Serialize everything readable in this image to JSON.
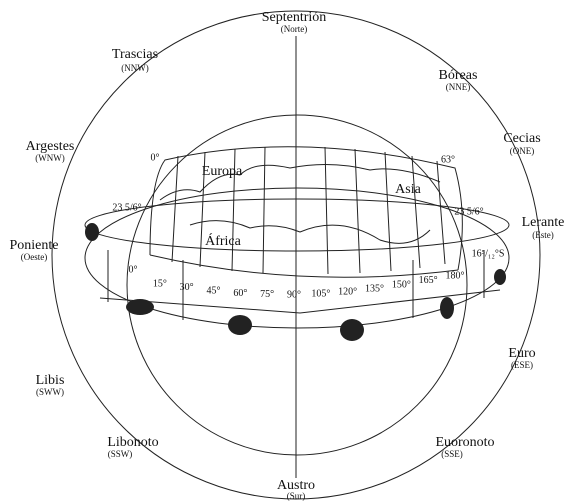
{
  "winds": [
    {
      "name": "Septentrión",
      "direction": "(Norte)"
    },
    {
      "name": "Trascias",
      "direction": "(NNW)"
    },
    {
      "name": "Bóreas",
      "direction": "(NNE)"
    },
    {
      "name": "Argestes",
      "direction": "(WNW)"
    },
    {
      "name": "Cecias",
      "direction": "(ONE)"
    },
    {
      "name": "Poniente",
      "direction": "(Oeste)"
    },
    {
      "name": "Lerante",
      "direction": "(Este)"
    },
    {
      "name": "Euro",
      "direction": "(ESE)"
    },
    {
      "name": "Libis",
      "direction": "(SWW)"
    },
    {
      "name": "Libonoto",
      "direction": "(SSW)"
    },
    {
      "name": "Euoronoto",
      "direction": "(SSE)"
    },
    {
      "name": "Austro",
      "direction": "(Sur)"
    }
  ],
  "map": {
    "regions": [
      "Europa",
      "Asia",
      "África"
    ],
    "latitudes": [
      "0°",
      "63°",
      "23 5/6°",
      "23 5/6°",
      "16⁵/₁₂°S"
    ],
    "longitudes": [
      "0°",
      "15°",
      "30°",
      "45°",
      "60°",
      "75°",
      "90°",
      "105°",
      "120°",
      "135°",
      "150°",
      "165°",
      "180°"
    ]
  }
}
